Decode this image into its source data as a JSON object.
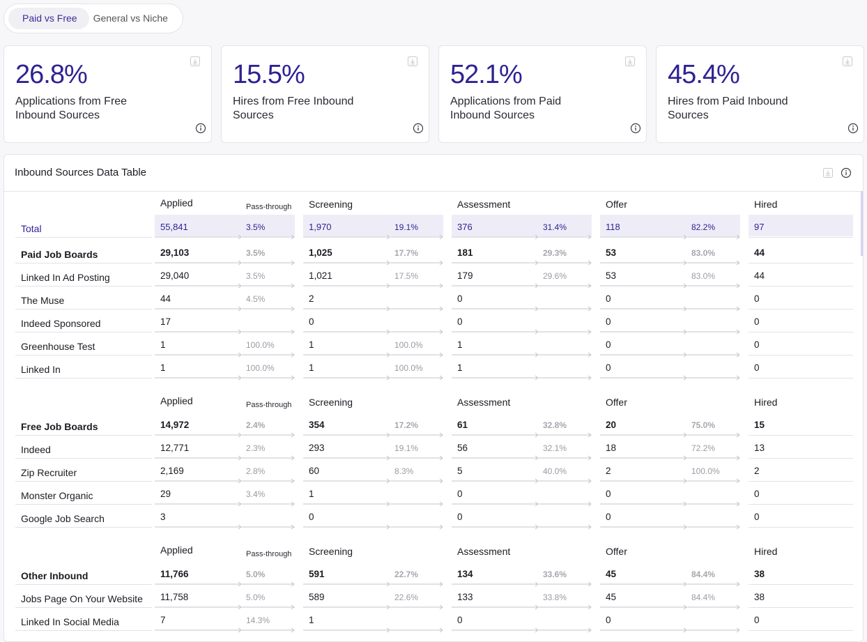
{
  "tabs": [
    {
      "label": "Paid vs Free",
      "active": true
    },
    {
      "label": "General vs Niche",
      "active": false
    }
  ],
  "kpis": [
    {
      "value": "26.8%",
      "label": "Applications from Free Inbound Sources"
    },
    {
      "value": "15.5%",
      "label": "Hires from Free Inbound Sources"
    },
    {
      "value": "52.1%",
      "label": "Applications from Paid Inbound Sources"
    },
    {
      "value": "45.4%",
      "label": "Hires from Paid Inbound Sources"
    }
  ],
  "table": {
    "title": "Inbound Sources Data Table",
    "headers": {
      "applied": "Applied",
      "passthrough": "Pass-through",
      "screening": "Screening",
      "assessment": "Assessment",
      "offer": "Offer",
      "hired": "Hired"
    },
    "total": {
      "label": "Total",
      "applied": "55,841",
      "p1": "3.5%",
      "screening": "1,970",
      "p2": "19.1%",
      "assessment": "376",
      "p3": "31.4%",
      "offer": "118",
      "p4": "82.2%",
      "hired": "97"
    },
    "groups": [
      {
        "rows": [
          {
            "label": "Paid Job Boards",
            "bold": true,
            "applied": "29,103",
            "p1": "3.5%",
            "screening": "1,025",
            "p2": "17.7%",
            "assessment": "181",
            "p3": "29.3%",
            "offer": "53",
            "p4": "83.0%",
            "hired": "44"
          },
          {
            "label": "Linked In Ad Posting",
            "applied": "29,040",
            "p1": "3.5%",
            "screening": "1,021",
            "p2": "17.5%",
            "assessment": "179",
            "p3": "29.6%",
            "offer": "53",
            "p4": "83.0%",
            "hired": "44"
          },
          {
            "label": "The Muse",
            "applied": "44",
            "p1": "4.5%",
            "screening": "2",
            "p2": "",
            "assessment": "0",
            "p3": "",
            "offer": "0",
            "p4": "",
            "hired": "0"
          },
          {
            "label": "Indeed Sponsored",
            "applied": "17",
            "p1": "",
            "screening": "0",
            "p2": "",
            "assessment": "0",
            "p3": "",
            "offer": "0",
            "p4": "",
            "hired": "0"
          },
          {
            "label": "Greenhouse Test",
            "applied": "1",
            "p1": "100.0%",
            "screening": "1",
            "p2": "100.0%",
            "assessment": "1",
            "p3": "",
            "offer": "0",
            "p4": "",
            "hired": "0"
          },
          {
            "label": "Linked In",
            "applied": "1",
            "p1": "100.0%",
            "screening": "1",
            "p2": "100.0%",
            "assessment": "1",
            "p3": "",
            "offer": "0",
            "p4": "",
            "hired": "0"
          }
        ]
      },
      {
        "rows": [
          {
            "label": "Free Job Boards",
            "bold": true,
            "applied": "14,972",
            "p1": "2.4%",
            "screening": "354",
            "p2": "17.2%",
            "assessment": "61",
            "p3": "32.8%",
            "offer": "20",
            "p4": "75.0%",
            "hired": "15"
          },
          {
            "label": "Indeed",
            "applied": "12,771",
            "p1": "2.3%",
            "screening": "293",
            "p2": "19.1%",
            "assessment": "56",
            "p3": "32.1%",
            "offer": "18",
            "p4": "72.2%",
            "hired": "13"
          },
          {
            "label": "Zip Recruiter",
            "applied": "2,169",
            "p1": "2.8%",
            "screening": "60",
            "p2": "8.3%",
            "assessment": "5",
            "p3": "40.0%",
            "offer": "2",
            "p4": "100.0%",
            "hired": "2"
          },
          {
            "label": "Monster Organic",
            "applied": "29",
            "p1": "3.4%",
            "screening": "1",
            "p2": "",
            "assessment": "0",
            "p3": "",
            "offer": "0",
            "p4": "",
            "hired": "0"
          },
          {
            "label": "Google Job Search",
            "applied": "3",
            "p1": "",
            "screening": "0",
            "p2": "",
            "assessment": "0",
            "p3": "",
            "offer": "0",
            "p4": "",
            "hired": "0"
          }
        ]
      },
      {
        "rows": [
          {
            "label": "Other Inbound",
            "bold": true,
            "applied": "11,766",
            "p1": "5.0%",
            "screening": "591",
            "p2": "22.7%",
            "assessment": "134",
            "p3": "33.6%",
            "offer": "45",
            "p4": "84.4%",
            "hired": "38"
          },
          {
            "label": "Jobs Page On Your Website",
            "applied": "11,758",
            "p1": "5.0%",
            "screening": "589",
            "p2": "22.6%",
            "assessment": "133",
            "p3": "33.8%",
            "offer": "45",
            "p4": "84.4%",
            "hired": "38"
          },
          {
            "label": "Linked In Social Media",
            "applied": "7",
            "p1": "14.3%",
            "screening": "1",
            "p2": "",
            "assessment": "0",
            "p3": "",
            "offer": "0",
            "p4": "",
            "hired": "0"
          }
        ]
      }
    ]
  },
  "icons": {
    "download": "download-icon",
    "info": "info-icon"
  },
  "colors": {
    "accent": "#2e2293",
    "total_bg": "#eeedf7"
  }
}
